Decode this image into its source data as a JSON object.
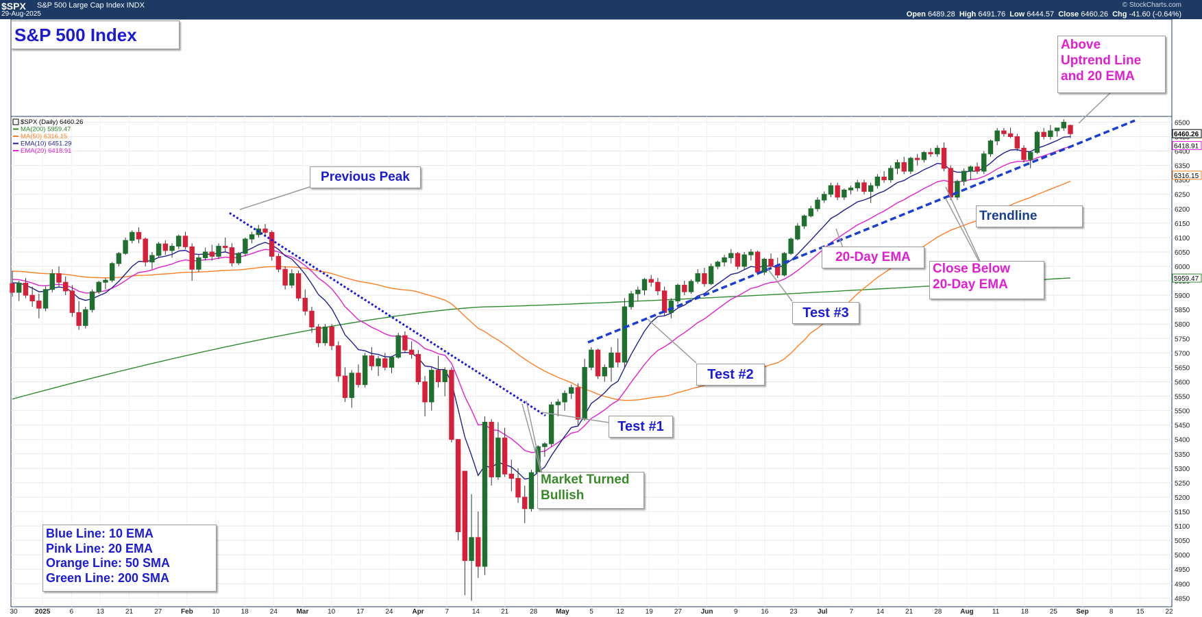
{
  "header": {
    "symbol": "$SPX",
    "name": "S&P 500 Large Cap Index INDX",
    "date": "29-Aug-2025",
    "brand": "© StockCharts.com",
    "open_label": "Open",
    "open": "6489.28",
    "high_label": "High",
    "high": "6491.76",
    "low_label": "Low",
    "low": "6444.57",
    "close_label": "Close",
    "close": "6460.26",
    "chg_label": "Chg",
    "chg": "-41.60 (-0.64%)"
  },
  "title_box": "S&P 500 Index",
  "legend": [
    {
      "text": "$SPX (Daily) 6460.26",
      "color": "#000000"
    },
    {
      "text": "MA(200) 5959.47",
      "color": "#2e8b2e"
    },
    {
      "text": "MA(50) 6316.15",
      "color": "#ff7f27"
    },
    {
      "text": "EMA(10) 6451.29",
      "color": "#1f1f8f"
    },
    {
      "text": "EMA(20) 6418.91",
      "color": "#e020d0"
    }
  ],
  "annotations": {
    "previous_peak": "Previous Peak",
    "test1": "Test #1",
    "test2": "Test #2",
    "test3": "Test #3",
    "market_turned": [
      "Market Turned",
      "Bullish"
    ],
    "ema20": "20-Day EMA",
    "close_below": [
      "Close Below",
      "20-Day EMA"
    ],
    "trendline": "Trendline",
    "above": [
      "Above",
      "Uptrend Line",
      "and 20 EMA"
    ]
  },
  "key_box": [
    "Blue Line: 10 EMA",
    "Pink Line: 20 EMA",
    "Orange Line: 50 SMA",
    "Green Line: 200 SMA"
  ],
  "chart_data": {
    "type": "candlestick",
    "title": "S&P 500 Index",
    "x_axis_labels": [
      "30",
      "2025",
      "6",
      "13",
      "21",
      "27",
      "Feb",
      "10",
      "18",
      "24",
      "Mar",
      "10",
      "17",
      "24",
      "Apr",
      "7",
      "14",
      "21",
      "28",
      "May",
      "5",
      "12",
      "19",
      "27",
      "Jun",
      "9",
      "16",
      "23",
      "Jul",
      "7",
      "14",
      "21",
      "28",
      "Aug",
      "11",
      "18",
      "25",
      "Sep",
      "8",
      "15",
      "22"
    ],
    "y_ticks": [
      4850,
      4900,
      4950,
      5000,
      5050,
      5100,
      5150,
      5200,
      5250,
      5300,
      5350,
      5400,
      5450,
      5500,
      5550,
      5600,
      5650,
      5700,
      5750,
      5800,
      5850,
      5900,
      5950,
      6000,
      6050,
      6100,
      6150,
      6200,
      6250,
      6300,
      6350,
      6400,
      6450,
      6500
    ],
    "ylim": [
      4820,
      6520
    ],
    "price_tags": [
      {
        "value": 6460.26,
        "label": "6460.26",
        "color": "#000000"
      },
      {
        "value": 6418.91,
        "label": "6418.91",
        "color": "#e020d0"
      },
      {
        "value": 6316.15,
        "label": "6316.15",
        "color": "#ff7f27"
      },
      {
        "value": 5959.47,
        "label": "5959.47",
        "color": "#2e8b2e"
      }
    ],
    "candles_ohlc": [
      [
        5940,
        5985,
        5895,
        5910
      ],
      [
        5910,
        5950,
        5880,
        5942
      ],
      [
        5942,
        5960,
        5890,
        5900
      ],
      [
        5900,
        5930,
        5860,
        5880
      ],
      [
        5880,
        5905,
        5820,
        5855
      ],
      [
        5855,
        5930,
        5845,
        5920
      ],
      [
        5920,
        5990,
        5910,
        5975
      ],
      [
        5975,
        6000,
        5930,
        5945
      ],
      [
        5945,
        5965,
        5900,
        5915
      ],
      [
        5915,
        5935,
        5825,
        5840
      ],
      [
        5840,
        5880,
        5780,
        5795
      ],
      [
        5795,
        5860,
        5785,
        5850
      ],
      [
        5850,
        5920,
        5840,
        5912
      ],
      [
        5912,
        5950,
        5905,
        5945
      ],
      [
        5945,
        5960,
        5920,
        5952
      ],
      [
        5952,
        6015,
        5945,
        6010
      ],
      [
        6010,
        6050,
        6000,
        6045
      ],
      [
        6045,
        6100,
        6040,
        6090
      ],
      [
        6090,
        6125,
        6080,
        6118
      ],
      [
        6118,
        6135,
        6080,
        6095
      ],
      [
        6095,
        6100,
        6000,
        6015
      ],
      [
        6015,
        6050,
        5990,
        6038
      ],
      [
        6038,
        6085,
        6030,
        6078
      ],
      [
        6078,
        6090,
        6040,
        6055
      ],
      [
        6055,
        6080,
        6030,
        6070
      ],
      [
        6070,
        6110,
        6060,
        6105
      ],
      [
        6105,
        6120,
        6060,
        6068
      ],
      [
        6068,
        6080,
        5950,
        5990
      ],
      [
        5990,
        6040,
        5980,
        6030
      ],
      [
        6030,
        6065,
        6020,
        6050
      ],
      [
        6050,
        6075,
        6020,
        6035
      ],
      [
        6035,
        6080,
        6025,
        6070
      ],
      [
        6070,
        6100,
        6050,
        6065
      ],
      [
        6065,
        6080,
        6000,
        6012
      ],
      [
        6012,
        6050,
        6005,
        6045
      ],
      [
        6045,
        6100,
        6035,
        6095
      ],
      [
        6095,
        6120,
        6080,
        6110
      ],
      [
        6110,
        6144,
        6100,
        6130
      ],
      [
        6130,
        6147,
        6110,
        6118
      ],
      [
        6118,
        6125,
        6020,
        6035
      ],
      [
        6035,
        6045,
        5980,
        5990
      ],
      [
        5990,
        6000,
        5920,
        5935
      ],
      [
        5935,
        5990,
        5925,
        5975
      ],
      [
        5975,
        5985,
        5880,
        5890
      ],
      [
        5890,
        5920,
        5830,
        5845
      ],
      [
        5845,
        5860,
        5770,
        5790
      ],
      [
        5790,
        5800,
        5720,
        5735
      ],
      [
        5735,
        5800,
        5725,
        5790
      ],
      [
        5790,
        5800,
        5710,
        5725
      ],
      [
        5725,
        5740,
        5600,
        5620
      ],
      [
        5620,
        5650,
        5530,
        5545
      ],
      [
        5545,
        5640,
        5510,
        5630
      ],
      [
        5630,
        5660,
        5580,
        5590
      ],
      [
        5590,
        5700,
        5580,
        5690
      ],
      [
        5690,
        5720,
        5640,
        5655
      ],
      [
        5655,
        5690,
        5620,
        5680
      ],
      [
        5680,
        5700,
        5640,
        5650
      ],
      [
        5650,
        5690,
        5630,
        5685
      ],
      [
        5685,
        5770,
        5680,
        5760
      ],
      [
        5760,
        5775,
        5700,
        5710
      ],
      [
        5710,
        5740,
        5680,
        5695
      ],
      [
        5695,
        5710,
        5590,
        5600
      ],
      [
        5600,
        5620,
        5480,
        5530
      ],
      [
        5530,
        5650,
        5500,
        5640
      ],
      [
        5640,
        5690,
        5580,
        5600
      ],
      [
        5600,
        5650,
        5550,
        5640
      ],
      [
        5640,
        5650,
        5390,
        5400
      ],
      [
        5400,
        5400,
        5050,
        5080
      ],
      [
        5290,
        5290,
        4860,
        4980
      ],
      [
        4980,
        5210,
        4840,
        5060
      ],
      [
        5060,
        5150,
        4920,
        4960
      ],
      [
        4960,
        5480,
        4930,
        5460
      ],
      [
        5460,
        5470,
        5240,
        5270
      ],
      [
        5270,
        5460,
        5260,
        5405
      ],
      [
        5405,
        5440,
        5270,
        5280
      ],
      [
        5280,
        5330,
        5220,
        5265
      ],
      [
        5265,
        5300,
        5180,
        5200
      ],
      [
        5200,
        5240,
        5110,
        5160
      ],
      [
        5160,
        5295,
        5150,
        5285
      ],
      [
        5285,
        5380,
        5280,
        5375
      ],
      [
        5375,
        5390,
        5340,
        5385
      ],
      [
        5385,
        5530,
        5375,
        5520
      ],
      [
        5520,
        5540,
        5480,
        5530
      ],
      [
        5530,
        5570,
        5500,
        5560
      ],
      [
        5560,
        5590,
        5540,
        5580
      ],
      [
        5580,
        5595,
        5450,
        5470
      ],
      [
        5470,
        5680,
        5465,
        5650
      ],
      [
        5650,
        5720,
        5640,
        5710
      ],
      [
        5710,
        5715,
        5610,
        5620
      ],
      [
        5620,
        5660,
        5600,
        5650
      ],
      [
        5650,
        5720,
        5600,
        5700
      ],
      [
        5700,
        5750,
        5650,
        5668
      ],
      [
        5668,
        5890,
        5650,
        5860
      ],
      [
        5860,
        5915,
        5850,
        5905
      ],
      [
        5905,
        5930,
        5880,
        5918
      ],
      [
        5918,
        5960,
        5900,
        5955
      ],
      [
        5955,
        5970,
        5930,
        5945
      ],
      [
        5945,
        5960,
        5900,
        5915
      ],
      [
        5915,
        5930,
        5830,
        5840
      ],
      [
        5840,
        5890,
        5820,
        5880
      ],
      [
        5880,
        5940,
        5870,
        5935
      ],
      [
        5935,
        5950,
        5900,
        5912
      ],
      [
        5912,
        5955,
        5905,
        5948
      ],
      [
        5948,
        5990,
        5940,
        5975
      ],
      [
        5975,
        5995,
        5930,
        5940
      ],
      [
        5940,
        6010,
        5935,
        6000
      ],
      [
        6000,
        6020,
        5990,
        6015
      ],
      [
        6015,
        6040,
        6000,
        6030
      ],
      [
        6030,
        6060,
        6010,
        6045
      ],
      [
        6045,
        6050,
        5990,
        6000
      ],
      [
        6000,
        6050,
        5990,
        6040
      ],
      [
        6040,
        6060,
        6020,
        6050
      ],
      [
        6050,
        6055,
        5970,
        5980
      ],
      [
        5980,
        6030,
        5970,
        6025
      ],
      [
        6025,
        6045,
        5990,
        6000
      ],
      [
        6000,
        6030,
        5960,
        5970
      ],
      [
        5970,
        6050,
        5965,
        6045
      ],
      [
        6045,
        6100,
        6040,
        6095
      ],
      [
        6095,
        6150,
        6090,
        6140
      ],
      [
        6140,
        6180,
        6130,
        6175
      ],
      [
        6175,
        6210,
        6170,
        6200
      ],
      [
        6200,
        6240,
        6190,
        6230
      ],
      [
        6230,
        6260,
        6220,
        6250
      ],
      [
        6250,
        6290,
        6240,
        6280
      ],
      [
        6280,
        6290,
        6230,
        6240
      ],
      [
        6240,
        6270,
        6230,
        6265
      ],
      [
        6265,
        6280,
        6250,
        6272
      ],
      [
        6272,
        6300,
        6260,
        6290
      ],
      [
        6290,
        6300,
        6250,
        6260
      ],
      [
        6260,
        6290,
        6220,
        6280
      ],
      [
        6280,
        6320,
        6270,
        6310
      ],
      [
        6310,
        6330,
        6290,
        6300
      ],
      [
        6300,
        6350,
        6290,
        6340
      ],
      [
        6340,
        6370,
        6320,
        6360
      ],
      [
        6360,
        6380,
        6320,
        6330
      ],
      [
        6330,
        6380,
        6320,
        6375
      ],
      [
        6375,
        6390,
        6350,
        6370
      ],
      [
        6370,
        6400,
        6360,
        6395
      ],
      [
        6395,
        6410,
        6380,
        6390
      ],
      [
        6390,
        6420,
        6380,
        6410
      ],
      [
        6410,
        6430,
        6330,
        6340
      ],
      [
        6340,
        6350,
        6230,
        6240
      ],
      [
        6240,
        6300,
        6230,
        6295
      ],
      [
        6295,
        6340,
        6280,
        6330
      ],
      [
        6330,
        6350,
        6300,
        6345
      ],
      [
        6345,
        6360,
        6320,
        6330
      ],
      [
        6330,
        6400,
        6320,
        6390
      ],
      [
        6390,
        6440,
        6380,
        6435
      ],
      [
        6435,
        6480,
        6420,
        6470
      ],
      [
        6470,
        6480,
        6450,
        6460
      ],
      [
        6460,
        6481,
        6445,
        6450
      ],
      [
        6450,
        6460,
        6400,
        6410
      ],
      [
        6410,
        6420,
        6360,
        6370
      ],
      [
        6370,
        6400,
        6340,
        6395
      ],
      [
        6395,
        6470,
        6390,
        6465
      ],
      [
        6465,
        6480,
        6440,
        6450
      ],
      [
        6450,
        6490,
        6440,
        6470
      ],
      [
        6470,
        6480,
        6450,
        6480
      ],
      [
        6480,
        6510,
        6470,
        6500
      ],
      [
        6489,
        6492,
        6445,
        6460
      ]
    ],
    "series": [
      {
        "name": "MA(200)",
        "color": "#2e8b2e",
        "values": [
          5540,
          5860,
          5960
        ]
      },
      {
        "name": "MA(50)",
        "color": "#ff7f27",
        "values": [
          5980,
          5530,
          6316
        ]
      },
      {
        "name": "EMA(10)",
        "color": "#1f1f8f",
        "values": [
          5950,
          5290,
          6451
        ]
      },
      {
        "name": "EMA(20)",
        "color": "#e020d0",
        "values": [
          5960,
          5360,
          6419
        ]
      }
    ]
  }
}
